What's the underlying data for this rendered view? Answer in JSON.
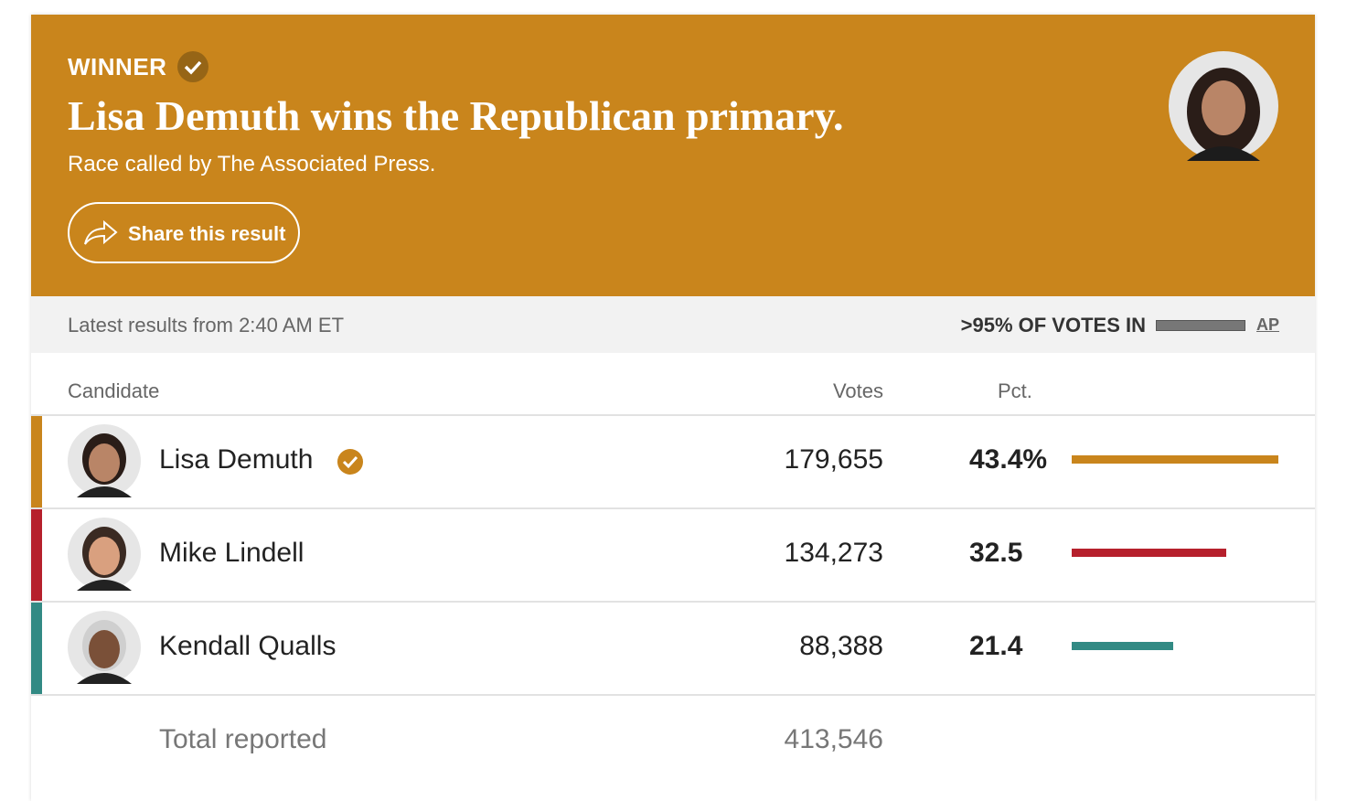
{
  "header": {
    "label": "WINNER",
    "title": "Lisa Demuth wins the Republican primary.",
    "subtitle": "Race called by The Associated Press.",
    "share": "Share this result"
  },
  "status": {
    "updated": "Latest results from 2:40 AM ET",
    "reporting": ">95% OF VOTES IN",
    "source": "AP"
  },
  "table": {
    "columns": [
      "Candidate",
      "Votes",
      "Pct."
    ],
    "rows": [
      {
        "name": "Lisa Demuth",
        "votes": "179,655",
        "pct": {
          "value": 43.4,
          "label": "43.4%"
        },
        "color": "#c9851c",
        "winner": true
      },
      {
        "name": "Mike Lindell",
        "votes": "134,273",
        "pct": 32.5,
        "color": "#b6202c",
        "winner": false
      },
      {
        "name": "Kendall Qualls",
        "votes": "88,388",
        "pct": 21.4,
        "color": "#328a84",
        "winner": false
      }
    ],
    "total": {
      "label": "Total reported",
      "votes": "413,546"
    }
  }
}
